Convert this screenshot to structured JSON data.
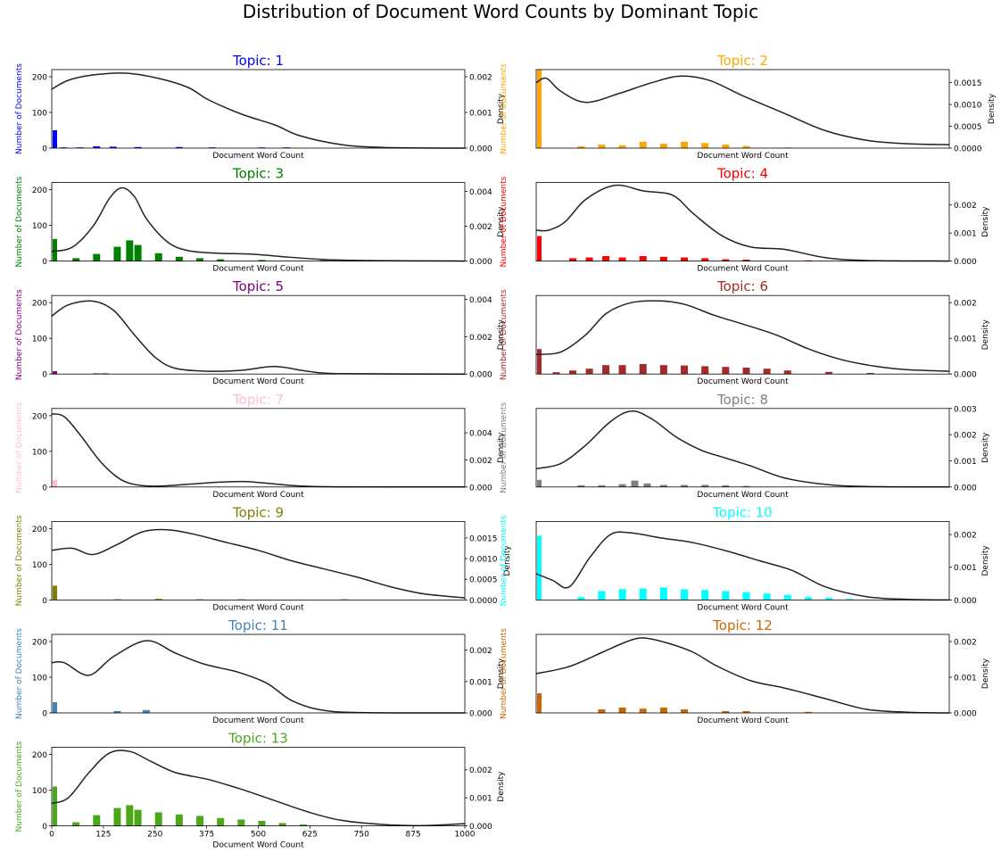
{
  "figure": {
    "title": "Distribution of Document Word Counts by Dominant Topic"
  },
  "chart_data": [
    {
      "type": "bar",
      "title": "Topic: 1",
      "color": "#0000ff",
      "xlabel": "Document Word Count",
      "ylabel": "Number of Documents",
      "y2label": "Density",
      "xlim": [
        0,
        1000
      ],
      "ylim": [
        0,
        220
      ],
      "y2lim": [
        0,
        0.0022
      ],
      "yticks": [
        0,
        100,
        200
      ],
      "y2ticks": [
        "0.000",
        "0.001",
        "0.002"
      ],
      "hist": {
        "x": [
          0,
          20,
          60,
          100,
          140,
          200,
          300,
          380,
          500,
          560
        ],
        "y": [
          50,
          2,
          2,
          5,
          4,
          3,
          3,
          2,
          2,
          2
        ]
      },
      "density": {
        "x": [
          0,
          40,
          100,
          180,
          260,
          330,
          380,
          460,
          540,
          600,
          700,
          800,
          1000
        ],
        "y": [
          0.00165,
          0.0019,
          0.00205,
          0.0021,
          0.00195,
          0.0017,
          0.00135,
          0.00095,
          0.00065,
          0.00035,
          0.0001,
          2e-05,
          0.0
        ]
      }
    },
    {
      "type": "bar",
      "title": "Topic: 2",
      "color": "#ffa500",
      "xlabel": "Document Word Count",
      "ylabel": "Number of Documents",
      "y2label": "Density",
      "xlim": [
        0,
        1000
      ],
      "ylim": [
        0,
        220
      ],
      "y2lim": [
        0,
        0.0018
      ],
      "yticks": [],
      "y2ticks": [
        "0.0000",
        "0.0005",
        "0.0010",
        "0.0015"
      ],
      "hist": {
        "x": [
          0,
          100,
          150,
          200,
          250,
          300,
          350,
          400,
          450,
          500,
          600
        ],
        "y": [
          220,
          5,
          10,
          8,
          18,
          12,
          18,
          14,
          10,
          6,
          2
        ]
      },
      "density": {
        "x": [
          0,
          25,
          60,
          120,
          200,
          280,
          350,
          420,
          500,
          600,
          700,
          800,
          900,
          1000
        ],
        "y": [
          0.0015,
          0.0016,
          0.0013,
          0.00105,
          0.00125,
          0.0015,
          0.00165,
          0.00155,
          0.0012,
          0.0008,
          0.0004,
          0.00018,
          0.0001,
          8e-05
        ]
      }
    },
    {
      "type": "bar",
      "title": "Topic: 3",
      "color": "#008000",
      "xlabel": "Document Word Count",
      "ylabel": "Number of Documents",
      "y2label": "Density",
      "xlim": [
        0,
        1000
      ],
      "ylim": [
        0,
        220
      ],
      "y2lim": [
        0,
        0.0045
      ],
      "yticks": [
        0,
        100,
        200
      ],
      "y2ticks": [
        "0.000",
        "0.002",
        "0.004"
      ],
      "hist": {
        "x": [
          0,
          50,
          100,
          150,
          180,
          200,
          250,
          300,
          350,
          400,
          500,
          650
        ],
        "y": [
          62,
          8,
          20,
          40,
          58,
          45,
          22,
          12,
          8,
          5,
          3,
          2
        ]
      },
      "density": {
        "x": [
          0,
          50,
          100,
          140,
          170,
          200,
          230,
          280,
          330,
          400,
          480,
          560,
          650,
          750,
          1000
        ],
        "y": [
          0.00055,
          0.0008,
          0.002,
          0.0036,
          0.0042,
          0.0037,
          0.0024,
          0.0011,
          0.0006,
          0.00045,
          0.0004,
          0.00025,
          0.0001,
          3e-05,
          0.0
        ]
      }
    },
    {
      "type": "bar",
      "title": "Topic: 4",
      "color": "#ff0000",
      "xlabel": "Document Word Count",
      "ylabel": "Number of Documents",
      "y2label": "Density",
      "xlim": [
        0,
        1000
      ],
      "ylim": [
        0,
        220
      ],
      "y2lim": [
        0,
        0.0028
      ],
      "yticks": [],
      "y2ticks": [
        "0.000",
        "0.001",
        "0.002"
      ],
      "hist": {
        "x": [
          0,
          80,
          120,
          160,
          200,
          250,
          300,
          350,
          400,
          450,
          500,
          650
        ],
        "y": [
          70,
          8,
          10,
          14,
          10,
          14,
          12,
          10,
          8,
          5,
          4,
          2
        ]
      },
      "density": {
        "x": [
          0,
          30,
          70,
          120,
          190,
          260,
          330,
          380,
          450,
          520,
          600,
          700,
          800,
          1000
        ],
        "y": [
          0.0011,
          0.0011,
          0.0014,
          0.0022,
          0.0027,
          0.0025,
          0.00235,
          0.0017,
          0.0009,
          0.0005,
          0.00042,
          0.00012,
          2e-05,
          0.0
        ]
      }
    },
    {
      "type": "bar",
      "title": "Topic: 5",
      "color": "#800080",
      "xlabel": "Document Word Count",
      "ylabel": "Number of Documents",
      "y2label": "Density",
      "xlim": [
        0,
        1000
      ],
      "ylim": [
        0,
        220
      ],
      "y2lim": [
        0,
        0.0042
      ],
      "yticks": [
        0,
        100,
        200
      ],
      "y2ticks": [
        "0.000",
        "0.002",
        "0.004"
      ],
      "hist": {
        "x": [
          0,
          100,
          120
        ],
        "y": [
          8,
          2,
          2
        ]
      },
      "density": {
        "x": [
          0,
          40,
          100,
          150,
          200,
          250,
          300,
          380,
          460,
          540,
          620,
          700,
          1000
        ],
        "y": [
          0.0031,
          0.0037,
          0.0039,
          0.0034,
          0.0021,
          0.0009,
          0.0003,
          0.00015,
          0.0002,
          0.0004,
          0.00015,
          2e-05,
          0.0
        ]
      }
    },
    {
      "type": "bar",
      "title": "Topic: 6",
      "color": "#a52a2a",
      "xlabel": "Document Word Count",
      "ylabel": "Number of Documents",
      "y2label": "Density",
      "xlim": [
        0,
        1000
      ],
      "ylim": [
        0,
        220
      ],
      "y2lim": [
        0,
        0.0022
      ],
      "yticks": [],
      "y2ticks": [
        "0.000",
        "0.001",
        "0.002"
      ],
      "hist": {
        "x": [
          0,
          40,
          80,
          120,
          160,
          200,
          250,
          300,
          350,
          400,
          450,
          500,
          550,
          600,
          700,
          800
        ],
        "y": [
          70,
          5,
          10,
          15,
          25,
          25,
          28,
          25,
          24,
          22,
          20,
          18,
          15,
          10,
          6,
          3
        ]
      },
      "density": {
        "x": [
          0,
          60,
          120,
          170,
          230,
          300,
          360,
          430,
          500,
          580,
          660,
          740,
          820,
          900,
          1000
        ],
        "y": [
          0.00055,
          0.00062,
          0.0011,
          0.0017,
          0.002,
          0.00205,
          0.00195,
          0.00165,
          0.0014,
          0.0011,
          0.0007,
          0.0004,
          0.00022,
          0.00012,
          8e-05
        ]
      }
    },
    {
      "type": "bar",
      "title": "Topic: 7",
      "color": "#ffc0cb",
      "xlabel": "Document Word Count",
      "ylabel": "Number of Documents",
      "y2label": "Density",
      "xlim": [
        0,
        1000
      ],
      "ylim": [
        0,
        220
      ],
      "y2lim": [
        0,
        0.0058
      ],
      "yticks": [
        0,
        100,
        200
      ],
      "y2ticks": [
        "0.000",
        "0.002",
        "0.004"
      ],
      "hist": {
        "x": [
          0
        ],
        "y": [
          20
        ]
      },
      "density": {
        "x": [
          0,
          30,
          70,
          120,
          170,
          220,
          270,
          330,
          400,
          470,
          530,
          600,
          700,
          1000
        ],
        "y": [
          0.0054,
          0.0052,
          0.0038,
          0.0018,
          0.0005,
          0.0001,
          8e-05,
          0.0002,
          0.00035,
          0.0004,
          0.00025,
          8e-05,
          1e-05,
          0.0
        ]
      }
    },
    {
      "type": "bar",
      "title": "Topic: 8",
      "color": "#808080",
      "xlabel": "Document Word Count",
      "ylabel": "Number of Documents",
      "y2label": "Density",
      "xlim": [
        0,
        1000
      ],
      "ylim": [
        0,
        220
      ],
      "y2lim": [
        0,
        0.003
      ],
      "yticks": [],
      "y2ticks": [
        "0.000",
        "0.001",
        "0.002",
        "0.003"
      ],
      "hist": {
        "x": [
          0,
          100,
          150,
          200,
          230,
          260,
          300,
          350,
          400,
          450,
          500
        ],
        "y": [
          20,
          5,
          5,
          8,
          18,
          10,
          6,
          6,
          6,
          5,
          3
        ]
      },
      "density": {
        "x": [
          0,
          60,
          120,
          180,
          230,
          280,
          340,
          400,
          460,
          520,
          600,
          700,
          800,
          1000
        ],
        "y": [
          0.0007,
          0.0009,
          0.0016,
          0.0025,
          0.0029,
          0.0026,
          0.0019,
          0.0014,
          0.0011,
          0.0008,
          0.00035,
          0.0001,
          2e-05,
          0.0
        ]
      }
    },
    {
      "type": "bar",
      "title": "Topic: 9",
      "color": "#808000",
      "xlabel": "Document Word Count",
      "ylabel": "Number of Documents",
      "y2label": "Density",
      "xlim": [
        0,
        1000
      ],
      "ylim": [
        0,
        220
      ],
      "y2lim": [
        0,
        0.0019
      ],
      "yticks": [
        0,
        100,
        200
      ],
      "y2ticks": [
        "0.0000",
        "0.0005",
        "0.0010",
        "0.0015"
      ],
      "hist": {
        "x": [
          0,
          150,
          250,
          350,
          450,
          700
        ],
        "y": [
          40,
          2,
          3,
          2,
          2,
          2
        ]
      },
      "density": {
        "x": [
          0,
          50,
          100,
          160,
          220,
          280,
          340,
          420,
          500,
          580,
          660,
          740,
          820,
          900,
          1000
        ],
        "y": [
          0.0012,
          0.00125,
          0.0011,
          0.00135,
          0.00165,
          0.0017,
          0.0016,
          0.0014,
          0.0012,
          0.00095,
          0.00075,
          0.00055,
          0.00032,
          0.00015,
          5e-05
        ]
      }
    },
    {
      "type": "bar",
      "title": "Topic: 10",
      "color": "#00ffff",
      "xlabel": "Document Word Count",
      "ylabel": "Number of Documents",
      "y2label": "Density",
      "xlim": [
        0,
        1000
      ],
      "ylim": [
        0,
        220
      ],
      "y2lim": [
        0,
        0.0024
      ],
      "yticks": [],
      "y2ticks": [
        "0.000",
        "0.001",
        "0.002"
      ],
      "hist": {
        "x": [
          0,
          100,
          150,
          200,
          250,
          300,
          350,
          400,
          450,
          500,
          550,
          600,
          650,
          700,
          750
        ],
        "y": [
          180,
          8,
          25,
          30,
          32,
          35,
          30,
          28,
          25,
          22,
          18,
          14,
          8,
          6,
          3
        ]
      },
      "density": {
        "x": [
          0,
          40,
          80,
          130,
          180,
          230,
          300,
          380,
          460,
          540,
          620,
          700,
          800,
          900,
          1000
        ],
        "y": [
          0.0008,
          0.0006,
          0.0004,
          0.0013,
          0.002,
          0.00205,
          0.0019,
          0.00175,
          0.0015,
          0.0012,
          0.0009,
          0.0004,
          0.0001,
          2e-05,
          0.0
        ]
      }
    },
    {
      "type": "bar",
      "title": "Topic: 11",
      "color": "#4682b4",
      "xlabel": "Document Word Count",
      "ylabel": "Number of Documents",
      "y2label": "Density",
      "xlim": [
        0,
        1000
      ],
      "ylim": [
        0,
        220
      ],
      "y2lim": [
        0,
        0.0025
      ],
      "yticks": [
        0,
        100,
        200
      ],
      "y2ticks": [
        "0.000",
        "0.001",
        "0.002"
      ],
      "hist": {
        "x": [
          0,
          150,
          220
        ],
        "y": [
          30,
          5,
          8
        ]
      },
      "density": {
        "x": [
          0,
          30,
          90,
          150,
          230,
          300,
          370,
          450,
          520,
          580,
          650,
          750,
          1000
        ],
        "y": [
          0.0016,
          0.0016,
          0.0012,
          0.0018,
          0.0023,
          0.0019,
          0.00155,
          0.0013,
          0.00095,
          0.0004,
          0.0001,
          1e-05,
          0.0
        ]
      }
    },
    {
      "type": "bar",
      "title": "Topic: 12",
      "color": "#cc6600",
      "xlabel": "Document Word Count",
      "ylabel": "Number of Documents",
      "y2label": "Density",
      "xlim": [
        0,
        1000
      ],
      "ylim": [
        0,
        220
      ],
      "y2lim": [
        0,
        0.0022
      ],
      "yticks": [],
      "y2ticks": [
        "0.000",
        "0.001",
        "0.002"
      ],
      "hist": {
        "x": [
          0,
          150,
          200,
          250,
          300,
          350,
          450,
          500,
          650
        ],
        "y": [
          55,
          10,
          15,
          12,
          15,
          10,
          5,
          5,
          3
        ]
      },
      "density": {
        "x": [
          0,
          80,
          160,
          220,
          260,
          320,
          380,
          440,
          520,
          600,
          700,
          800,
          900,
          1000
        ],
        "y": [
          0.0011,
          0.0013,
          0.0017,
          0.002,
          0.0021,
          0.00195,
          0.0017,
          0.0013,
          0.0009,
          0.0007,
          0.0004,
          0.0001,
          2e-05,
          0.0
        ]
      }
    },
    {
      "type": "bar",
      "title": "Topic: 13",
      "color": "#4ca719",
      "xlabel": "Document Word Count",
      "ylabel": "Number of Documents",
      "y2label": "Density",
      "xlim": [
        0,
        1000
      ],
      "ylim": [
        0,
        220
      ],
      "y2lim": [
        0,
        0.0028
      ],
      "yticks": [
        0,
        100,
        200
      ],
      "y2ticks": [
        "0.000",
        "0.001",
        "0.002"
      ],
      "hist": {
        "x": [
          0,
          50,
          100,
          150,
          180,
          200,
          250,
          300,
          350,
          400,
          450,
          500,
          550,
          600
        ],
        "y": [
          110,
          10,
          30,
          50,
          58,
          45,
          38,
          32,
          28,
          22,
          18,
          14,
          8,
          4
        ]
      },
      "density": {
        "x": [
          0,
          40,
          90,
          140,
          190,
          240,
          300,
          380,
          460,
          540,
          620,
          700,
          800,
          900,
          1000
        ],
        "y": [
          0.0008,
          0.001,
          0.0019,
          0.0026,
          0.00265,
          0.0023,
          0.0019,
          0.00165,
          0.0013,
          0.0009,
          0.0005,
          0.0002,
          5e-05,
          1e-05,
          8e-05
        ]
      }
    }
  ],
  "xticks": [
    "0",
    "125",
    "250",
    "375",
    "500",
    "625",
    "750",
    "875",
    "1000"
  ]
}
